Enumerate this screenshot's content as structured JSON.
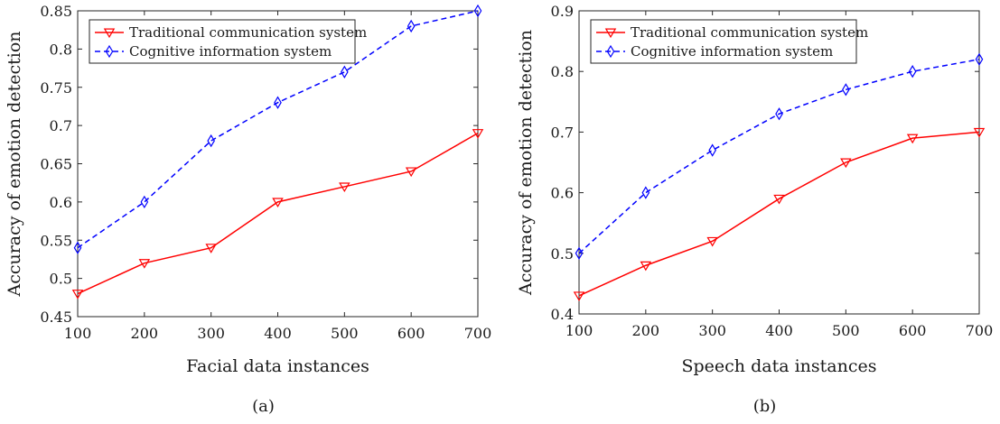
{
  "figure": {
    "panels": [
      {
        "caption": "(a)",
        "xlabel": "Facial data instances",
        "ylabel": "Accuracy of emotion detection"
      },
      {
        "caption": "(b)",
        "xlabel": "Speech data instances",
        "ylabel": "Accuracy of emotion detection"
      }
    ]
  },
  "chart_data": [
    {
      "type": "line",
      "panel": "(a)",
      "title": "",
      "xlabel": "Facial data instances",
      "ylabel": "Accuracy of emotion detection",
      "x": [
        100,
        200,
        300,
        400,
        500,
        600,
        700
      ],
      "xlim": [
        100,
        700
      ],
      "ylim": [
        0.45,
        0.85
      ],
      "xticks": [
        100,
        200,
        300,
        400,
        500,
        600,
        700
      ],
      "yticks": [
        0.45,
        0.5,
        0.55,
        0.6,
        0.65,
        0.7,
        0.75,
        0.8,
        0.85
      ],
      "ytick_labels": [
        "0.45",
        "0.5",
        "0.55",
        "0.6",
        "0.65",
        "0.7",
        "0.75",
        "0.8",
        "0.85"
      ],
      "grid": false,
      "legend_position": "top-left",
      "series": [
        {
          "name": "Traditional communication system",
          "values": [
            0.48,
            0.52,
            0.54,
            0.6,
            0.62,
            0.64,
            0.69
          ],
          "color": "#ff0000",
          "line_style": "solid",
          "marker": "triangle-down"
        },
        {
          "name": "Cognitive information system",
          "values": [
            0.54,
            0.6,
            0.68,
            0.73,
            0.77,
            0.83,
            0.85
          ],
          "color": "#0000ff",
          "line_style": "dashed",
          "marker": "diamond"
        }
      ]
    },
    {
      "type": "line",
      "panel": "(b)",
      "title": "",
      "xlabel": "Speech data instances",
      "ylabel": "Accuracy of emotion detection",
      "x": [
        100,
        200,
        300,
        400,
        500,
        600,
        700
      ],
      "xlim": [
        100,
        700
      ],
      "ylim": [
        0.4,
        0.9
      ],
      "xticks": [
        100,
        200,
        300,
        400,
        500,
        600,
        700
      ],
      "yticks": [
        0.4,
        0.5,
        0.6,
        0.7,
        0.8,
        0.9
      ],
      "ytick_labels": [
        "0.4",
        "0.5",
        "0.6",
        "0.7",
        "0.8",
        "0.9"
      ],
      "grid": false,
      "legend_position": "top-left",
      "series": [
        {
          "name": "Traditional communication system",
          "values": [
            0.43,
            0.48,
            0.52,
            0.59,
            0.65,
            0.69,
            0.7
          ],
          "color": "#ff0000",
          "line_style": "solid",
          "marker": "triangle-down"
        },
        {
          "name": "Cognitive information system",
          "values": [
            0.5,
            0.6,
            0.67,
            0.73,
            0.77,
            0.8,
            0.82
          ],
          "color": "#0000ff",
          "line_style": "dashed",
          "marker": "diamond"
        }
      ]
    }
  ]
}
